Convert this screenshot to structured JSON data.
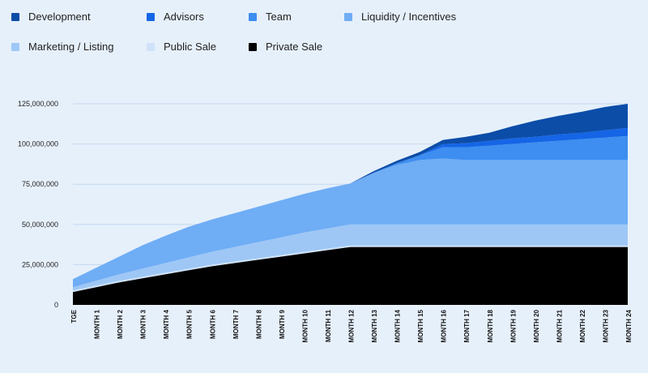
{
  "chart_data": {
    "type": "area",
    "stacked": true,
    "categories": [
      "TGE",
      "MONTH 1",
      "MONTH 2",
      "MONTH 3",
      "MONTH 4",
      "MONTH 5",
      "MONTH 6",
      "MONTH 7",
      "MONTH 8",
      "MONTH 9",
      "MONTH 10",
      "MONTH 11",
      "MONTH 12",
      "MONTH 13",
      "MONTH 14",
      "MONTH 15",
      "MONTH 16",
      "MONTH 17",
      "MONTH 18",
      "MONTH 19",
      "MONTH 20",
      "MONTH 21",
      "MONTH 22",
      "MONTH 23",
      "MONTH 24"
    ],
    "ylim": [
      0,
      125000000
    ],
    "yticks": [
      0,
      25000000,
      50000000,
      75000000,
      100000000,
      125000000
    ],
    "ytick_labels": [
      "0",
      "25,000,000",
      "50,000,000",
      "75,000,000",
      "100,000,000",
      "125,000,000"
    ],
    "grid": true,
    "legend_position": "top",
    "series": [
      {
        "name": "Private Sale",
        "color": "#000000",
        "values": [
          8000000,
          11000000,
          14000000,
          16500000,
          19000000,
          21500000,
          24000000,
          26000000,
          28000000,
          30000000,
          32000000,
          34000000,
          36000000,
          36000000,
          36000000,
          36000000,
          36000000,
          36000000,
          36000000,
          36000000,
          36000000,
          36000000,
          36000000,
          36000000,
          36000000
        ]
      },
      {
        "name": "Public Sale",
        "color": "#cfe2f8",
        "values": [
          1000000,
          1000000,
          1000000,
          1000000,
          1000000,
          1000000,
          1000000,
          1000000,
          1000000,
          1000000,
          1000000,
          1000000,
          1000000,
          1000000,
          1000000,
          1000000,
          1000000,
          1000000,
          1000000,
          1000000,
          1000000,
          1000000,
          1000000,
          1000000,
          1000000
        ]
      },
      {
        "name": "Marketing / Listing",
        "color": "#9ec7f6",
        "values": [
          2000000,
          3000000,
          4000000,
          5000000,
          6000000,
          7000000,
          8000000,
          9000000,
          10000000,
          11000000,
          12000000,
          12500000,
          13000000,
          13000000,
          13000000,
          13000000,
          13000000,
          13000000,
          13000000,
          13000000,
          13000000,
          13000000,
          13000000,
          13000000,
          13000000
        ]
      },
      {
        "name": "Liquidity / Incentives",
        "color": "#6fadf5",
        "values": [
          5000000,
          8000000,
          11000000,
          14500000,
          17000000,
          19000000,
          20000000,
          21000000,
          22000000,
          23000000,
          24000000,
          25000000,
          25500000,
          32000000,
          37000000,
          40000000,
          41000000,
          40000000,
          40000000,
          40000000,
          40000000,
          40000000,
          40000000,
          40000000,
          40000000
        ]
      },
      {
        "name": "Team",
        "color": "#3d8ef0",
        "values": [
          0,
          0,
          0,
          0,
          0,
          0,
          0,
          0,
          0,
          0,
          0,
          0,
          0,
          0,
          1000000,
          3000000,
          7000000,
          8000000,
          9000000,
          10000000,
          11000000,
          12000000,
          13000000,
          14000000,
          15000000
        ]
      },
      {
        "name": "Advisors",
        "color": "#1565e6",
        "values": [
          0,
          0,
          0,
          0,
          0,
          0,
          0,
          0,
          0,
          0,
          0,
          0,
          0,
          0,
          0,
          0,
          2000000,
          2500000,
          3000000,
          3500000,
          3500000,
          4000000,
          4000000,
          4500000,
          5000000
        ]
      },
      {
        "name": "Development",
        "color": "#0c4da8",
        "values": [
          0,
          0,
          0,
          0,
          0,
          0,
          0,
          0,
          0,
          0,
          0,
          0,
          0,
          1000000,
          1500000,
          2000000,
          2500000,
          4000000,
          5000000,
          7500000,
          10000000,
          11500000,
          13000000,
          14500000,
          15000000
        ]
      }
    ],
    "legend_order": [
      "Development",
      "Advisors",
      "Team",
      "Liquidity / Incentives",
      "Marketing / Listing",
      "Public Sale",
      "Private Sale"
    ]
  }
}
